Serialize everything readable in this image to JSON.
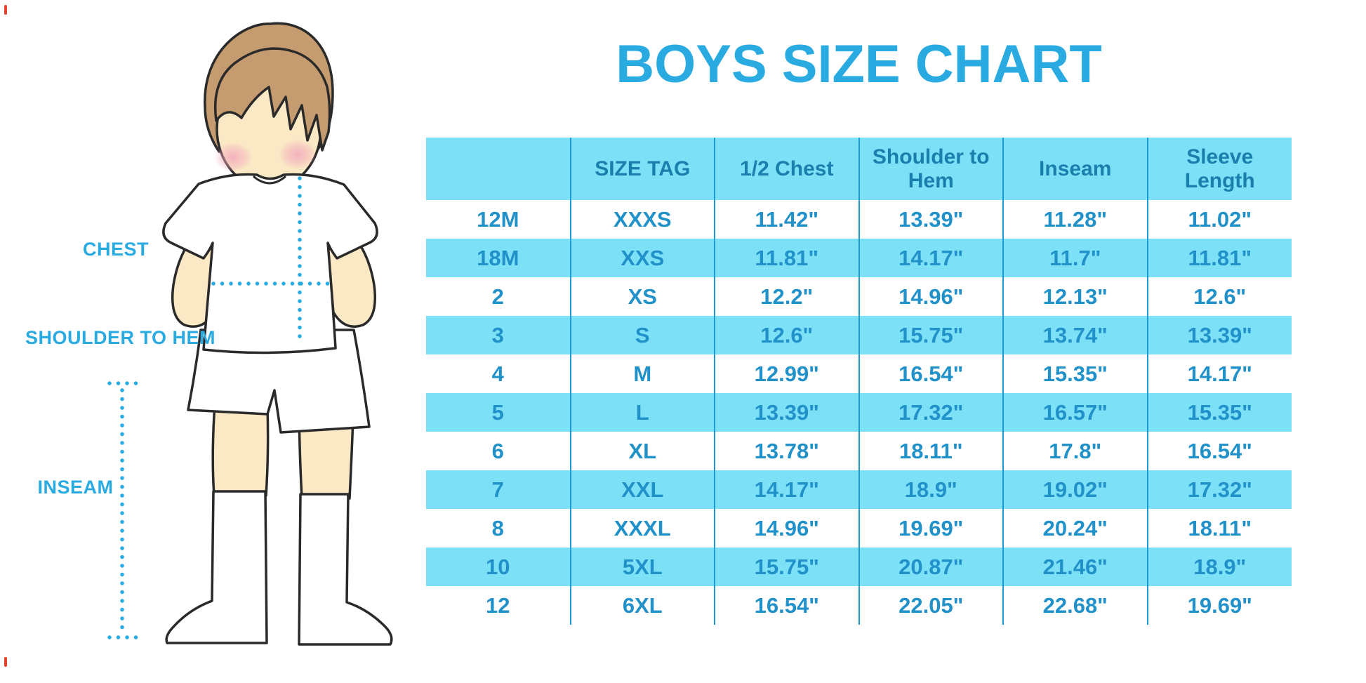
{
  "title": "BOYS SIZE CHART",
  "figure_labels": {
    "chest": "CHEST",
    "shoulder_to_hem": "SHOULDER TO HEM",
    "inseam": "INSEAM"
  },
  "colors": {
    "accent_blue": "#29ABE2",
    "table_stripe": "#7CE0F7",
    "header_text": "#1A7FAD",
    "cell_text": "#2191C9",
    "column_divider": "#1C9AD6",
    "skin": "#FBE8C5",
    "hair": "#C59C6F"
  },
  "chart_data": {
    "type": "table",
    "title": "BOYS SIZE CHART",
    "columns": [
      "",
      "SIZE TAG",
      "1/2 Chest",
      "Shoulder to Hem",
      "Inseam",
      "Sleeve Length"
    ],
    "rows": [
      [
        "12M",
        "XXXS",
        "11.42\"",
        "13.39\"",
        "11.28\"",
        "11.02\""
      ],
      [
        "18M",
        "XXS",
        "11.81\"",
        "14.17\"",
        "11.7\"",
        "11.81\""
      ],
      [
        "2",
        "XS",
        "12.2\"",
        "14.96\"",
        "12.13\"",
        "12.6\""
      ],
      [
        "3",
        "S",
        "12.6\"",
        "15.75\"",
        "13.74\"",
        "13.39\""
      ],
      [
        "4",
        "M",
        "12.99\"",
        "16.54\"",
        "15.35\"",
        "14.17\""
      ],
      [
        "5",
        "L",
        "13.39\"",
        "17.32\"",
        "16.57\"",
        "15.35\""
      ],
      [
        "6",
        "XL",
        "13.78\"",
        "18.11\"",
        "17.8\"",
        "16.54\""
      ],
      [
        "7",
        "XXL",
        "14.17\"",
        "18.9\"",
        "19.02\"",
        "17.32\""
      ],
      [
        "8",
        "XXXL",
        "14.96\"",
        "19.69\"",
        "20.24\"",
        "18.11\""
      ],
      [
        "10",
        "5XL",
        "15.75\"",
        "20.87\"",
        "21.46\"",
        "18.9\""
      ],
      [
        "12",
        "6XL",
        "16.54\"",
        "22.05\"",
        "22.68\"",
        "19.69\""
      ]
    ],
    "layout": {
      "stripe_pattern": "alternating white / light-cyan rows, light-cyan header",
      "grid": "vertical column dividers only",
      "units": "inches"
    }
  }
}
